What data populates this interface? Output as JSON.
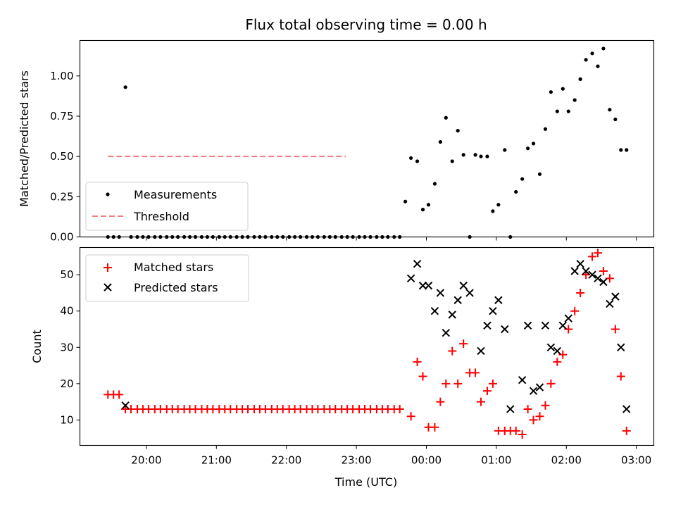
{
  "chart_data": {
    "title": "Flux total observing time = 0.00 h",
    "xlabel": "Time (UTC)",
    "x_tick_labels": [
      "20:00",
      "21:00",
      "22:00",
      "23:00",
      "00:00",
      "01:00",
      "02:00",
      "03:00"
    ],
    "x_unit": "hours after 20:00 UTC",
    "xlim": [
      -0.95,
      7.25
    ],
    "panels": [
      {
        "type": "scatter",
        "ylabel": "Matched/Predicted stars",
        "ylim": [
          0,
          1.22
        ],
        "yticks": [
          "0.00",
          "0.25",
          "0.50",
          "0.75",
          "1.00"
        ],
        "legend_position": "lower-left",
        "threshold": {
          "name": "Threshold",
          "value": 0.5,
          "x_range": [
            -0.55,
            2.85
          ],
          "color": "#f08080"
        },
        "series": [
          {
            "name": "Measurements",
            "color": "#000000",
            "marker": "dot",
            "x": [
              -0.55,
              -0.47,
              -0.39,
              -0.3,
              -0.22,
              -0.13,
              -0.05,
              0.03,
              0.12,
              0.2,
              0.29,
              0.37,
              0.45,
              0.54,
              0.62,
              0.7,
              0.79,
              0.87,
              0.95,
              1.04,
              1.12,
              1.2,
              1.29,
              1.37,
              1.45,
              1.54,
              1.62,
              1.7,
              1.79,
              1.87,
              1.95,
              2.04,
              2.12,
              2.2,
              2.29,
              2.37,
              2.45,
              2.54,
              2.62,
              2.7,
              2.79,
              2.87,
              2.95,
              3.04,
              3.12,
              3.2,
              3.29,
              3.37,
              3.45,
              3.54,
              3.62,
              3.7,
              3.78,
              3.87,
              3.95,
              4.03,
              4.12,
              4.2,
              4.28,
              4.37,
              4.45,
              4.53,
              4.62,
              4.7,
              4.78,
              4.87,
              4.95,
              5.03,
              5.12,
              5.2,
              5.28,
              5.37,
              5.45,
              5.53,
              5.62,
              5.7,
              5.78,
              5.87,
              5.95,
              6.03,
              6.12,
              6.2,
              6.28,
              6.37,
              6.45,
              6.53,
              6.62,
              6.7,
              6.78,
              6.86
            ],
            "y": [
              0,
              0,
              0,
              0.93,
              0,
              0,
              0,
              0,
              0,
              0,
              0,
              0,
              0,
              0,
              0,
              0,
              0,
              0,
              0,
              0,
              0,
              0,
              0,
              0,
              0,
              0,
              0,
              0,
              0,
              0,
              0,
              0,
              0,
              0,
              0,
              0,
              0,
              0,
              0,
              0,
              0,
              0,
              0,
              0,
              0,
              0,
              0,
              0,
              0,
              0,
              0,
              0.22,
              0.49,
              0.47,
              0.17,
              0.2,
              0.33,
              0.59,
              0.74,
              0.47,
              0.66,
              0.51,
              0,
              0.51,
              0.5,
              0.5,
              0.16,
              0.2,
              0.54,
              0,
              0.28,
              0.36,
              0.55,
              0.58,
              0.39,
              0.67,
              0.9,
              0.78,
              0.92,
              0.78,
              0.85,
              0.98,
              1.1,
              1.14,
              1.06,
              1.17,
              0.79,
              0.73,
              0.54,
              0.54
            ]
          }
        ]
      },
      {
        "type": "scatter",
        "ylabel": "Count",
        "ylim": [
          3,
          57.5
        ],
        "yticks": [
          "10",
          "20",
          "30",
          "40",
          "50"
        ],
        "legend_position": "upper-left",
        "series": [
          {
            "name": "Matched stars",
            "color": "#ff0000",
            "marker": "plus",
            "x": [
              -0.55,
              -0.47,
              -0.39,
              -0.3,
              -0.22,
              -0.13,
              -0.05,
              0.03,
              0.12,
              0.2,
              0.29,
              0.37,
              0.45,
              0.54,
              0.62,
              0.7,
              0.79,
              0.87,
              0.95,
              1.04,
              1.12,
              1.2,
              1.29,
              1.37,
              1.45,
              1.54,
              1.62,
              1.7,
              1.79,
              1.87,
              1.95,
              2.04,
              2.12,
              2.2,
              2.29,
              2.37,
              2.45,
              2.54,
              2.62,
              2.7,
              2.79,
              2.87,
              2.95,
              3.04,
              3.12,
              3.2,
              3.29,
              3.37,
              3.45,
              3.54,
              3.62,
              3.78,
              3.87,
              3.95,
              4.03,
              4.12,
              4.2,
              4.28,
              4.37,
              4.45,
              4.53,
              4.62,
              4.7,
              4.78,
              4.87,
              4.95,
              5.03,
              5.12,
              5.2,
              5.28,
              5.37,
              5.45,
              5.53,
              5.62,
              5.7,
              5.78,
              5.87,
              5.95,
              6.03,
              6.12,
              6.2,
              6.28,
              6.37,
              6.45,
              6.53,
              6.62,
              6.7,
              6.78,
              6.86
            ],
            "y": [
              17,
              17,
              17,
              13,
              13,
              13,
              13,
              13,
              13,
              13,
              13,
              13,
              13,
              13,
              13,
              13,
              13,
              13,
              13,
              13,
              13,
              13,
              13,
              13,
              13,
              13,
              13,
              13,
              13,
              13,
              13,
              13,
              13,
              13,
              13,
              13,
              13,
              13,
              13,
              13,
              13,
              13,
              13,
              13,
              13,
              13,
              13,
              13,
              13,
              13,
              13,
              11,
              26,
              22,
              8,
              8,
              15,
              20,
              29,
              20,
              31,
              23,
              23,
              15,
              18,
              20,
              7,
              7,
              7,
              7,
              6,
              13,
              10,
              11,
              14,
              20,
              26,
              28,
              35,
              40,
              45,
              50,
              55,
              56,
              51,
              49,
              35,
              22,
              7
            ]
          },
          {
            "name": "Predicted stars",
            "color": "#000000",
            "marker": "x",
            "x": [
              -0.3,
              3.78,
              3.87,
              3.95,
              4.03,
              4.12,
              4.2,
              4.28,
              4.37,
              4.45,
              4.53,
              4.62,
              4.78,
              4.87,
              4.95,
              5.03,
              5.12,
              5.2,
              5.37,
              5.45,
              5.53,
              5.62,
              5.7,
              5.78,
              5.87,
              5.95,
              6.03,
              6.12,
              6.2,
              6.28,
              6.37,
              6.45,
              6.53,
              6.62,
              6.7,
              6.78,
              6.86
            ],
            "y": [
              14,
              49,
              53,
              47,
              47,
              40,
              45,
              34,
              39,
              43,
              47,
              45,
              29,
              36,
              40,
              43,
              35,
              13,
              21,
              36,
              18,
              19,
              36,
              30,
              29,
              36,
              38,
              51,
              53,
              51,
              50,
              49,
              48,
              42,
              44,
              30,
              13
            ]
          }
        ]
      }
    ]
  }
}
